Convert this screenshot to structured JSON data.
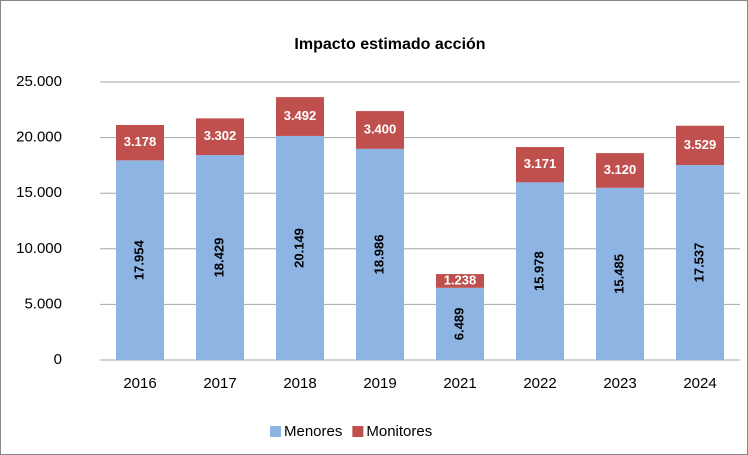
{
  "chart_data": {
    "type": "stacked_bar",
    "title": "Impacto estimado acción",
    "categories": [
      "2016",
      "2017",
      "2018",
      "2019",
      "2021",
      "2022",
      "2023",
      "2024"
    ],
    "series": [
      {
        "name": "Menores",
        "color": "#8eb4e3",
        "values": [
          17954,
          18429,
          20149,
          18986,
          6489,
          15978,
          15485,
          17537
        ],
        "value_labels": [
          "17.954",
          "18.429",
          "20.149",
          "18.986",
          "6.489",
          "15.978",
          "15.485",
          "17.537"
        ]
      },
      {
        "name": "Monitores",
        "color": "#c0504d",
        "values": [
          3178,
          3302,
          3492,
          3400,
          1238,
          3171,
          3120,
          3529
        ],
        "value_labels": [
          "3.178",
          "3.302",
          "3.492",
          "3.400",
          "1.238",
          "3.171",
          "3.120",
          "3.529"
        ]
      }
    ],
    "ylim": [
      0,
      25000
    ],
    "yticks": [
      0,
      {
        "value": 5000,
        "label": "5.000"
      },
      {
        "value": 10000,
        "label": "10.000"
      },
      {
        "value": 15000,
        "label": "15.000"
      },
      {
        "value": 20000,
        "label": "20.000"
      },
      {
        "value": 25000,
        "label": "25.000"
      }
    ],
    "grid": true,
    "legend": "bottom"
  }
}
